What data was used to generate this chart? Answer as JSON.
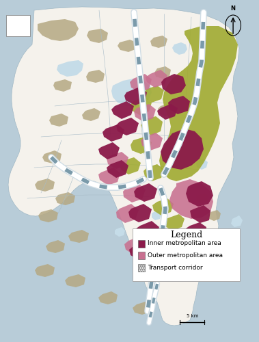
{
  "figure_width": 3.79,
  "figure_height": 5.0,
  "background_color": "#b8ccd8",
  "land_color": "#f5f2ec",
  "water_inland_color": "#c5dce8",
  "tan_color": "#b5a882",
  "olive_color": "#a0aa30",
  "dark_purple": "#8b1a4a",
  "light_pink": "#c87090",
  "border_color": "#a0b8c5",
  "corridor_color_outer": "#8ab0c0",
  "corridor_color_inner": "#ffffff",
  "legend": {
    "title": "Legend",
    "title_fontsize": 9,
    "items": [
      {
        "label": "Inner metropolitan area",
        "color": "#8b1a4a",
        "type": "rect"
      },
      {
        "label": "Outer metropolitan area",
        "color": "#c87090",
        "type": "rect"
      },
      {
        "label": "Transport corridor",
        "color": "#d0d0d0",
        "type": "hatch"
      }
    ],
    "fontsize": 6.5
  }
}
